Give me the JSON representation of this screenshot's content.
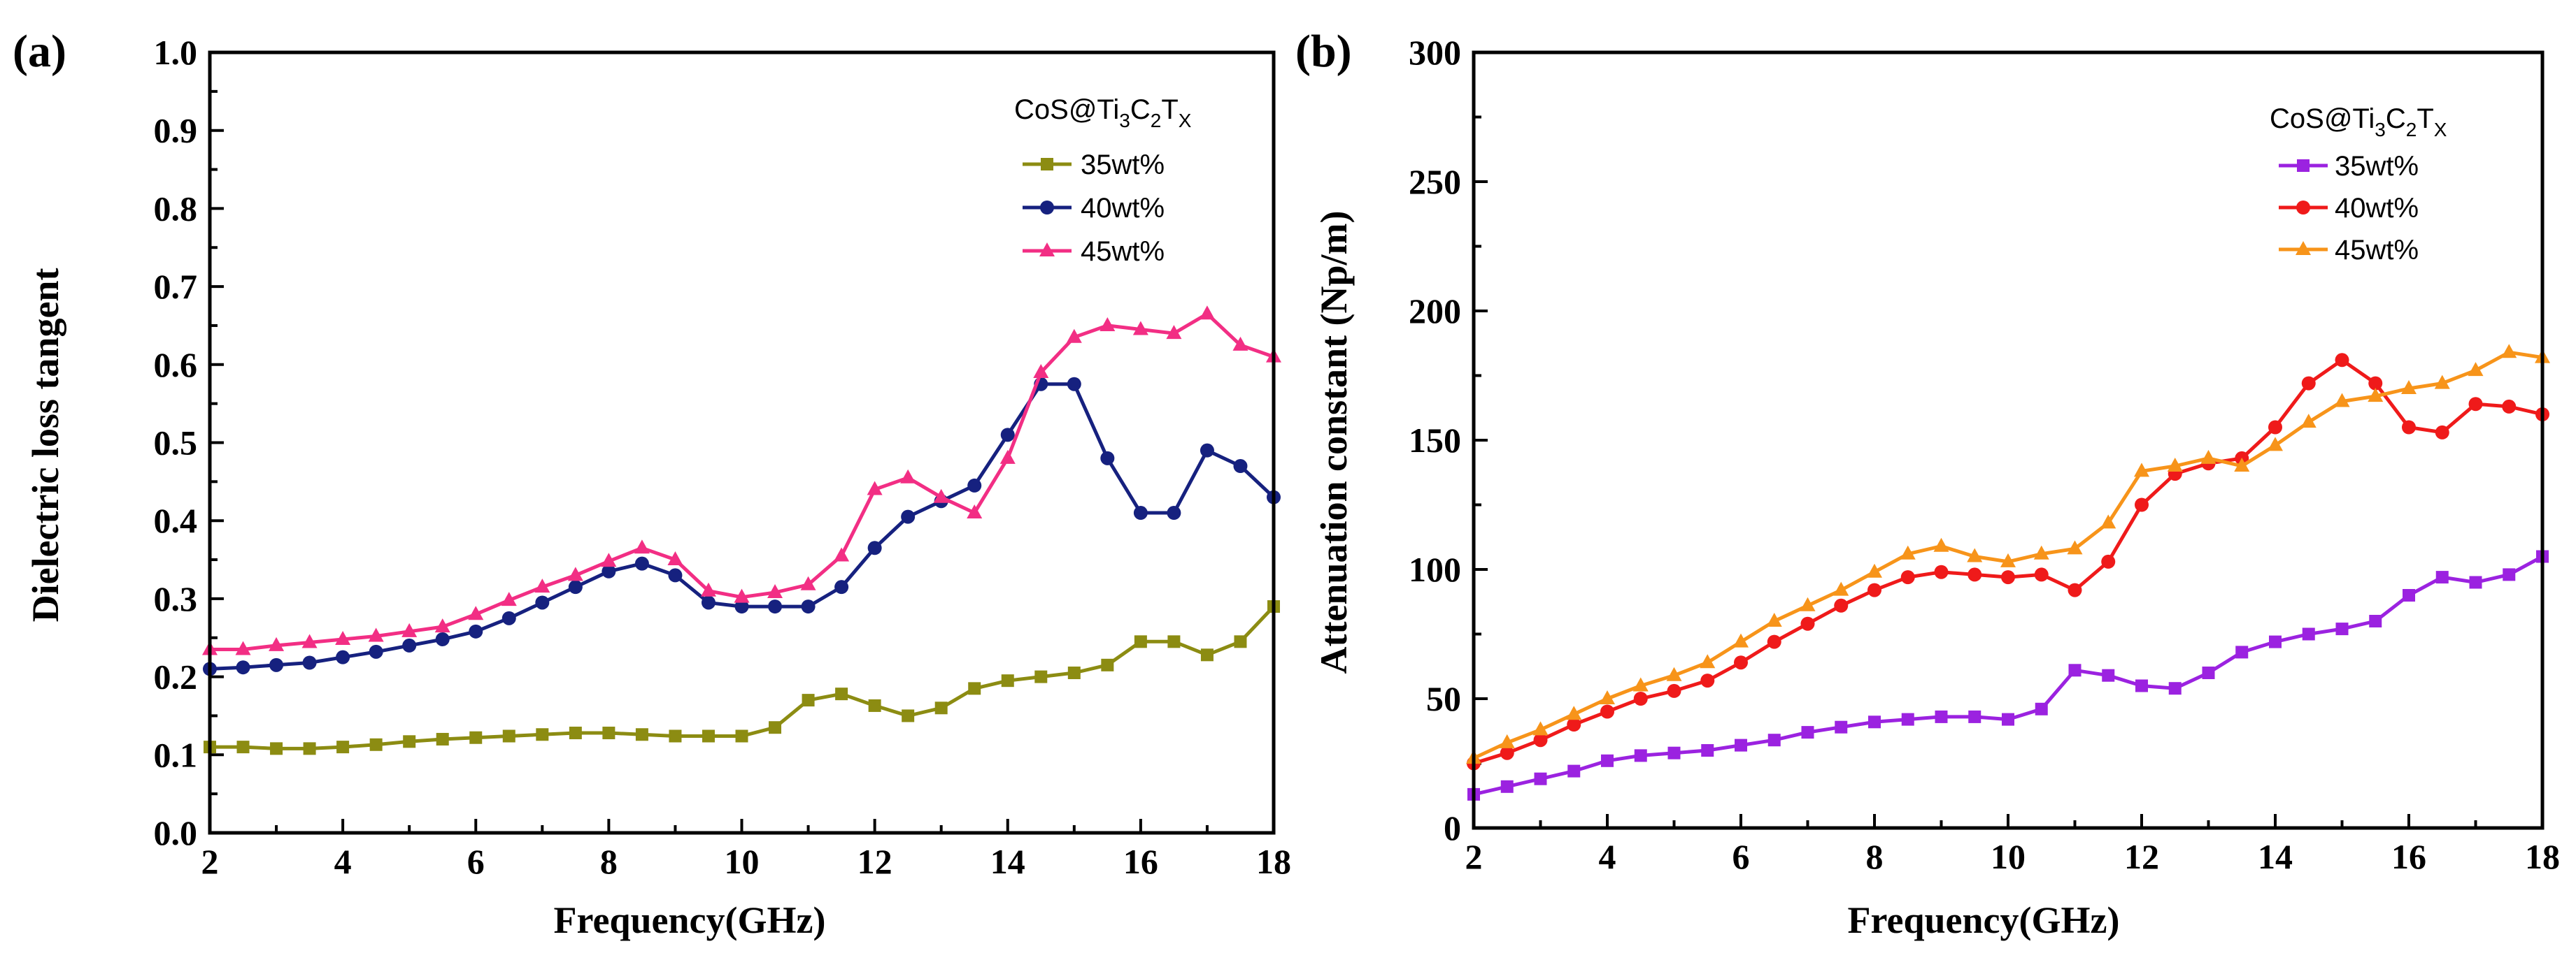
{
  "colors": {
    "axis": "#000000"
  },
  "legend": {
    "title_parts": [
      "CoS@Ti",
      "3",
      "C",
      "2",
      "T",
      "X"
    ]
  },
  "chart_data": [
    {
      "panel_label": "(a)",
      "type": "line",
      "xlabel": "Frequency(GHz)",
      "ylabel": "Dielectric loss tangent",
      "xlim": [
        2,
        18
      ],
      "ylim": [
        0,
        1.0
      ],
      "xticks": [
        2,
        4,
        6,
        8,
        10,
        12,
        14,
        16,
        18
      ],
      "yticks": [
        0.0,
        0.1,
        0.2,
        0.3,
        0.4,
        0.5,
        0.6,
        0.7,
        0.8,
        0.9,
        1.0
      ],
      "ytick_labels": [
        "0.0",
        "0.1",
        "0.2",
        "0.3",
        "0.4",
        "0.5",
        "0.6",
        "0.7",
        "0.8",
        "0.9",
        "1.0"
      ],
      "legend_position": "top-right",
      "series": [
        {
          "name": "35wt%",
          "color": "#8c8c12",
          "marker": "square",
          "x": [
            2,
            2.5,
            3,
            3.5,
            4,
            4.5,
            5,
            5.5,
            6,
            6.5,
            7,
            7.5,
            8,
            8.5,
            9,
            9.5,
            10,
            10.5,
            11,
            11.5,
            12,
            12.5,
            13,
            13.5,
            14,
            14.5,
            15,
            15.5,
            16,
            16.5,
            17,
            17.5,
            18
          ],
          "y": [
            0.11,
            0.11,
            0.108,
            0.108,
            0.11,
            0.113,
            0.117,
            0.12,
            0.122,
            0.124,
            0.126,
            0.128,
            0.128,
            0.126,
            0.124,
            0.124,
            0.124,
            0.135,
            0.17,
            0.178,
            0.163,
            0.15,
            0.16,
            0.185,
            0.195,
            0.2,
            0.205,
            0.215,
            0.245,
            0.245,
            0.228,
            0.245,
            0.29
          ]
        },
        {
          "name": "40wt%",
          "color": "#16217f",
          "marker": "circle",
          "x": [
            2,
            2.5,
            3,
            3.5,
            4,
            4.5,
            5,
            5.5,
            6,
            6.5,
            7,
            7.5,
            8,
            8.5,
            9,
            9.5,
            10,
            10.5,
            11,
            11.5,
            12,
            12.5,
            13,
            13.5,
            14,
            14.5,
            15,
            15.5,
            16,
            16.5,
            17,
            17.5,
            18
          ],
          "y": [
            0.21,
            0.212,
            0.215,
            0.218,
            0.225,
            0.232,
            0.24,
            0.248,
            0.258,
            0.275,
            0.295,
            0.315,
            0.335,
            0.345,
            0.33,
            0.295,
            0.29,
            0.29,
            0.29,
            0.315,
            0.365,
            0.405,
            0.425,
            0.445,
            0.51,
            0.575,
            0.575,
            0.48,
            0.41,
            0.41,
            0.49,
            0.47,
            0.43
          ]
        },
        {
          "name": "45wt%",
          "color": "#f22e84",
          "marker": "triangle",
          "x": [
            2,
            2.5,
            3,
            3.5,
            4,
            4.5,
            5,
            5.5,
            6,
            6.5,
            7,
            7.5,
            8,
            8.5,
            9,
            9.5,
            10,
            10.5,
            11,
            11.5,
            12,
            12.5,
            13,
            13.5,
            14,
            14.5,
            15,
            15.5,
            16,
            16.5,
            17,
            17.5,
            18
          ],
          "y": [
            0.235,
            0.235,
            0.24,
            0.244,
            0.248,
            0.252,
            0.258,
            0.264,
            0.28,
            0.298,
            0.315,
            0.33,
            0.348,
            0.365,
            0.35,
            0.31,
            0.302,
            0.308,
            0.318,
            0.355,
            0.44,
            0.455,
            0.43,
            0.41,
            0.48,
            0.59,
            0.635,
            0.65,
            0.645,
            0.64,
            0.665,
            0.625,
            0.61
          ]
        }
      ]
    },
    {
      "panel_label": "(b)",
      "type": "line",
      "xlabel": "Frequency(GHz)",
      "ylabel": "Attenuation constant (Np/m)",
      "xlim": [
        2,
        18
      ],
      "ylim": [
        0,
        300
      ],
      "xticks": [
        2,
        4,
        6,
        8,
        10,
        12,
        14,
        16,
        18
      ],
      "yticks": [
        0,
        50,
        100,
        150,
        200,
        250,
        300
      ],
      "ytick_labels": [
        "0",
        "50",
        "100",
        "150",
        "200",
        "250",
        "300"
      ],
      "legend_position": "top-right",
      "series": [
        {
          "name": "35wt%",
          "color": "#9b22e0",
          "marker": "square",
          "x": [
            2,
            2.5,
            3,
            3.5,
            4,
            4.5,
            5,
            5.5,
            6,
            6.5,
            7,
            7.5,
            8,
            8.5,
            9,
            9.5,
            10,
            10.5,
            11,
            11.5,
            12,
            12.5,
            13,
            13.5,
            14,
            14.5,
            15,
            15.5,
            16,
            16.5,
            17,
            17.5,
            18
          ],
          "y": [
            13,
            16,
            19,
            22,
            26,
            28,
            29,
            30,
            32,
            34,
            37,
            39,
            41,
            42,
            43,
            43,
            42,
            46,
            61,
            59,
            55,
            54,
            60,
            68,
            72,
            75,
            77,
            80,
            90,
            97,
            95,
            98,
            105
          ]
        },
        {
          "name": "40wt%",
          "color": "#ef1a1a",
          "marker": "circle",
          "x": [
            2,
            2.5,
            3,
            3.5,
            4,
            4.5,
            5,
            5.5,
            6,
            6.5,
            7,
            7.5,
            8,
            8.5,
            9,
            9.5,
            10,
            10.5,
            11,
            11.5,
            12,
            12.5,
            13,
            13.5,
            14,
            14.5,
            15,
            15.5,
            16,
            16.5,
            17,
            17.5,
            18
          ],
          "y": [
            25,
            29,
            34,
            40,
            45,
            50,
            53,
            57,
            64,
            72,
            79,
            86,
            92,
            97,
            99,
            98,
            97,
            98,
            92,
            103,
            125,
            137,
            141,
            143,
            155,
            172,
            181,
            172,
            155,
            153,
            164,
            163,
            160
          ]
        },
        {
          "name": "45wt%",
          "color": "#f7941a",
          "marker": "triangle",
          "x": [
            2,
            2.5,
            3,
            3.5,
            4,
            4.5,
            5,
            5.5,
            6,
            6.5,
            7,
            7.5,
            8,
            8.5,
            9,
            9.5,
            10,
            10.5,
            11,
            11.5,
            12,
            12.5,
            13,
            13.5,
            14,
            14.5,
            15,
            15.5,
            16,
            16.5,
            17,
            17.5,
            18
          ],
          "y": [
            27,
            33,
            38,
            44,
            50,
            55,
            59,
            64,
            72,
            80,
            86,
            92,
            99,
            106,
            109,
            105,
            103,
            106,
            108,
            118,
            138,
            140,
            143,
            140,
            148,
            157,
            165,
            167,
            170,
            172,
            177,
            184,
            182
          ]
        }
      ]
    }
  ]
}
